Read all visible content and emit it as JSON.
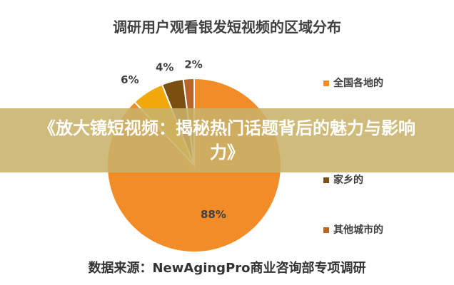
{
  "chart_data": {
    "type": "pie",
    "title": "调研用户观看银发短视频的区域分布",
    "categories": [
      "全国各地的",
      "",
      "家乡的",
      "其他城市的"
    ],
    "values": [
      88,
      6,
      4,
      2
    ],
    "labels": [
      "88%",
      "6%",
      "4%",
      "2%"
    ],
    "colors": [
      "#F28C28",
      "#F0A80A",
      "#7A4F10",
      "#B8652A"
    ],
    "legend": "right"
  },
  "source": "数据来源：NewAgingPro商业咨询部专项调研",
  "banner": {
    "title": "《放大镜短视频：揭秘热门话题背后的魅力与影响力》"
  }
}
